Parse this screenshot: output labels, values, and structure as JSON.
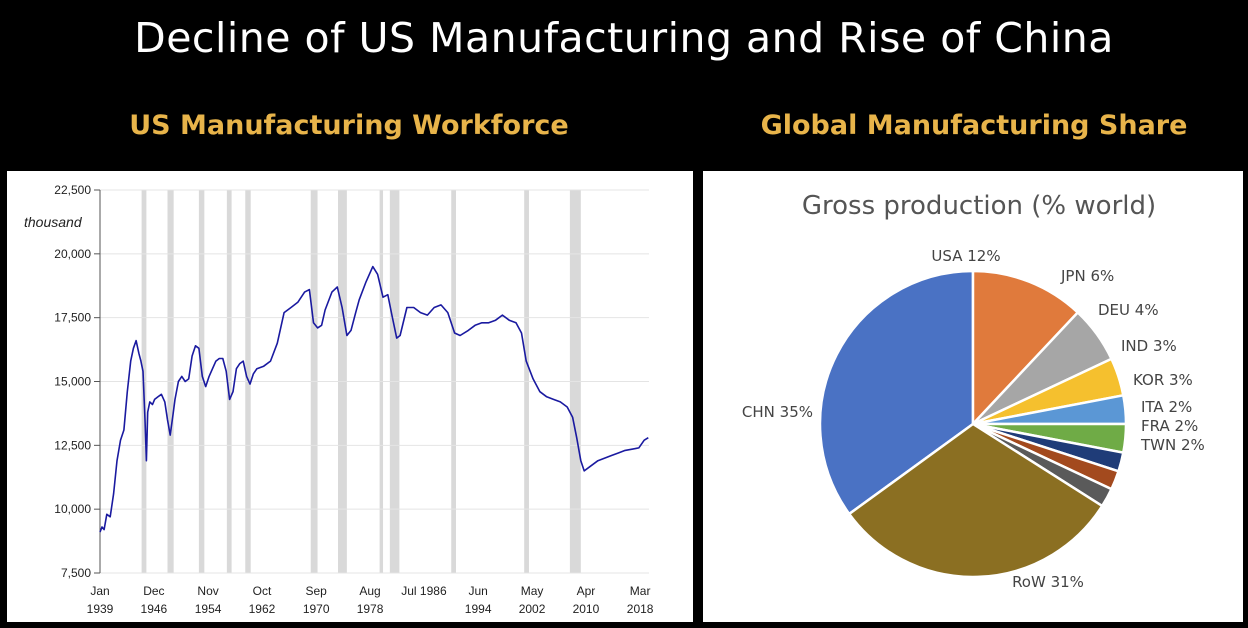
{
  "title": "Decline of US Manufacturing and Rise of China",
  "left_section_title": "US Manufacturing Workforce",
  "right_section_title": "Global Manufacturing Share",
  "chart_data": [
    {
      "type": "line",
      "unit": "thousand",
      "ylim": [
        7500,
        22500
      ],
      "y_ticks": [
        "22,500",
        "20,000",
        "17,500",
        "15,000",
        "12,500",
        "10,000",
        "7,500"
      ],
      "y_tick_values": [
        22500,
        20000,
        17500,
        15000,
        12500,
        10000,
        7500
      ],
      "xlim": [
        1939.0,
        2019.5
      ],
      "x_ticks": [
        {
          "value": 1939.0,
          "line1": "Jan",
          "line2": "1939"
        },
        {
          "value": 1946.9,
          "line1": "Dec",
          "line2": "1946"
        },
        {
          "value": 1954.85,
          "line1": "Nov",
          "line2": "1954"
        },
        {
          "value": 1962.75,
          "line1": "Oct",
          "line2": "1962"
        },
        {
          "value": 1970.7,
          "line1": "Sep",
          "line2": "1970"
        },
        {
          "value": 1978.6,
          "line1": "Aug",
          "line2": "1978"
        },
        {
          "value": 1986.5,
          "line1": "Jul 1986",
          "line2": ""
        },
        {
          "value": 1994.45,
          "line1": "Jun",
          "line2": "1994"
        },
        {
          "value": 2002.35,
          "line1": "May",
          "line2": "2002"
        },
        {
          "value": 2010.25,
          "line1": "Apr",
          "line2": "2010"
        },
        {
          "value": 2018.2,
          "line1": "Mar",
          "line2": "2018"
        }
      ],
      "grid": true,
      "line_color": "#1a1aa0",
      "recession_color": "#d9d9d9",
      "recessions": [
        [
          1945.1,
          1945.8
        ],
        [
          1948.9,
          1949.8
        ],
        [
          1953.5,
          1954.3
        ],
        [
          1957.6,
          1958.3
        ],
        [
          1960.3,
          1961.1
        ],
        [
          1969.9,
          1970.9
        ],
        [
          1973.9,
          1975.2
        ],
        [
          1980.0,
          1980.5
        ],
        [
          1981.5,
          1982.9
        ],
        [
          1990.5,
          1991.2
        ],
        [
          2001.2,
          2001.9
        ],
        [
          2007.9,
          2009.5
        ]
      ],
      "x": [
        1939.0,
        1939.3,
        1939.6,
        1940.0,
        1940.5,
        1941.0,
        1941.5,
        1942.0,
        1942.5,
        1943.0,
        1943.5,
        1943.9,
        1944.3,
        1944.7,
        1945.0,
        1945.3,
        1945.6,
        1945.8,
        1946.0,
        1946.3,
        1946.7,
        1947.0,
        1947.5,
        1948.0,
        1948.5,
        1948.9,
        1949.3,
        1949.7,
        1950.0,
        1950.5,
        1951.0,
        1951.5,
        1952.0,
        1952.5,
        1953.0,
        1953.5,
        1954.0,
        1954.5,
        1955.0,
        1955.5,
        1956.0,
        1956.5,
        1957.0,
        1957.5,
        1958.0,
        1958.5,
        1959.0,
        1959.5,
        1960.0,
        1960.5,
        1961.0,
        1961.5,
        1962.0,
        1963.0,
        1964.0,
        1965.0,
        1966.0,
        1967.0,
        1968.0,
        1969.0,
        1969.7,
        1970.3,
        1970.9,
        1971.5,
        1972.0,
        1973.0,
        1973.8,
        1974.5,
        1975.2,
        1975.8,
        1976.5,
        1977.0,
        1978.0,
        1979.0,
        1979.7,
        1980.5,
        1981.2,
        1981.8,
        1982.5,
        1983.0,
        1984.0,
        1985.0,
        1986.0,
        1987.0,
        1988.0,
        1989.0,
        1990.0,
        1991.0,
        1991.8,
        1993.0,
        1994.0,
        1995.0,
        1996.0,
        1997.0,
        1998.0,
        1999.0,
        2000.0,
        2000.8,
        2001.5,
        2002.5,
        2003.5,
        2004.5,
        2005.5,
        2006.5,
        2007.5,
        2008.3,
        2008.9,
        2009.5,
        2010.0,
        2011.0,
        2012.0,
        2013.0,
        2014.0,
        2015.0,
        2016.0,
        2017.0,
        2018.0,
        2018.8,
        2019.4
      ],
      "y": [
        9100,
        9300,
        9200,
        9800,
        9700,
        10600,
        11900,
        12700,
        13100,
        14600,
        15800,
        16300,
        16600,
        16100,
        15800,
        15400,
        13500,
        11900,
        13800,
        14200,
        14100,
        14300,
        14400,
        14500,
        14200,
        13500,
        12900,
        13700,
        14300,
        15000,
        15200,
        15000,
        15100,
        16000,
        16400,
        16300,
        15200,
        14800,
        15200,
        15500,
        15800,
        15900,
        15900,
        15400,
        14300,
        14600,
        15500,
        15700,
        15800,
        15200,
        14900,
        15300,
        15500,
        15600,
        15800,
        16500,
        17700,
        17900,
        18100,
        18500,
        18600,
        17300,
        17100,
        17200,
        17800,
        18500,
        18700,
        17900,
        16800,
        17000,
        17700,
        18200,
        18900,
        19500,
        19200,
        18300,
        18400,
        17600,
        16700,
        16800,
        17900,
        17900,
        17700,
        17600,
        17900,
        18000,
        17700,
        16900,
        16800,
        17000,
        17200,
        17300,
        17300,
        17400,
        17600,
        17400,
        17300,
        16900,
        15800,
        15100,
        14600,
        14400,
        14300,
        14200,
        14000,
        13600,
        12800,
        11900,
        11500,
        11700,
        11900,
        12000,
        12100,
        12200,
        12300,
        12350,
        12400,
        12700,
        12800
      ],
      "series": [
        {
          "name": "",
          "color": "#1a1aa0"
        }
      ]
    },
    {
      "type": "pie",
      "title": "Gross production  (% world)",
      "slices": [
        {
          "label": "CHN 35%",
          "value": 35,
          "color": "#4a72c4"
        },
        {
          "label": "USA 12%",
          "value": 12,
          "color": "#e07a3c"
        },
        {
          "label": "JPN 6%",
          "value": 6,
          "color": "#a6a6a6"
        },
        {
          "label": "DEU 4%",
          "value": 4,
          "color": "#f5c02e"
        },
        {
          "label": "IND 3%",
          "value": 3,
          "color": "#5b97d5"
        },
        {
          "label": "KOR 3%",
          "value": 3,
          "color": "#6fab46"
        },
        {
          "label": "ITA 2%",
          "value": 2,
          "color": "#1f3c78"
        },
        {
          "label": "FRA 2%",
          "value": 2,
          "color": "#a34a1e"
        },
        {
          "label": "TWN 2%",
          "value": 2,
          "color": "#5a5a5a"
        },
        {
          "label": "RoW 31%",
          "value": 31,
          "color": "#8b6f22"
        }
      ]
    }
  ]
}
